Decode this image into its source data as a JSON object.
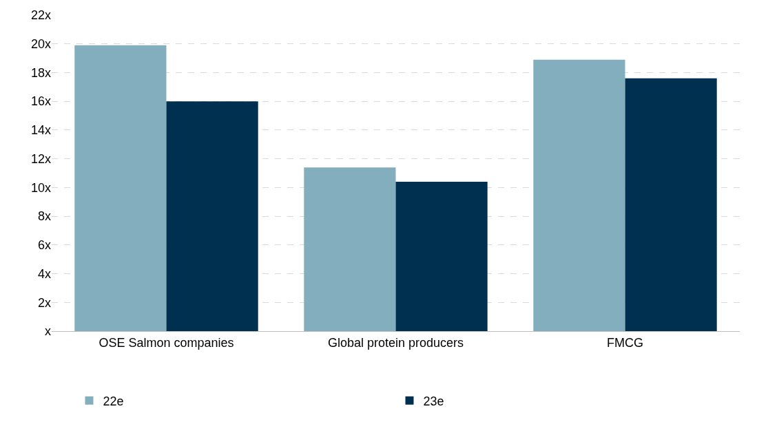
{
  "chart_data": {
    "type": "bar",
    "categories": [
      "OSE Salmon companies",
      "Global protein producers",
      "FMCG"
    ],
    "series": [
      {
        "name": "22e",
        "color": "#83aebe",
        "values": [
          19.9,
          11.4,
          18.9
        ]
      },
      {
        "name": "23e",
        "color": "#00304f",
        "values": [
          16.0,
          10.4,
          17.6
        ]
      }
    ],
    "ylim": [
      0,
      22
    ],
    "yticks": [
      {
        "value": 0,
        "label": "x"
      },
      {
        "value": 2,
        "label": "2x"
      },
      {
        "value": 4,
        "label": "4x"
      },
      {
        "value": 6,
        "label": "6x"
      },
      {
        "value": 8,
        "label": "8x"
      },
      {
        "value": 10,
        "label": "10x"
      },
      {
        "value": 12,
        "label": "12x"
      },
      {
        "value": 14,
        "label": "14x"
      },
      {
        "value": 16,
        "label": "16x"
      },
      {
        "value": 18,
        "label": "18x"
      },
      {
        "value": 20,
        "label": "20x"
      },
      {
        "value": 22,
        "label": "22x"
      }
    ],
    "grid": "y",
    "legend": "bottom"
  }
}
